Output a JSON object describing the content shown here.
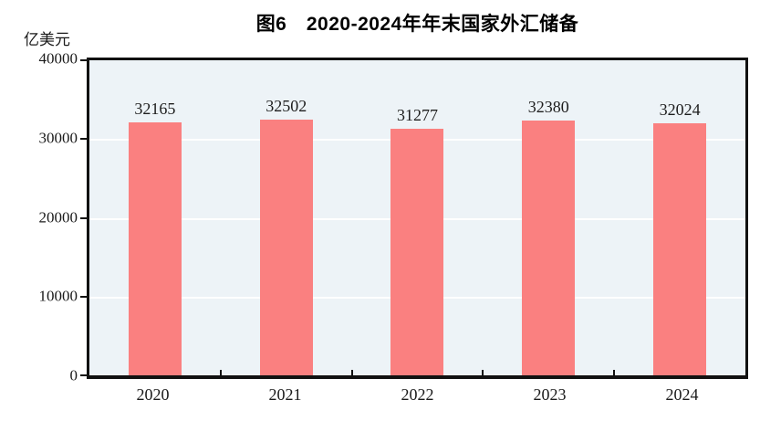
{
  "chart_data": {
    "type": "bar",
    "title": "图6　2020-2024年年末国家外汇储备",
    "ylabel": "亿美元",
    "xlabel": "",
    "categories": [
      "2020",
      "2021",
      "2022",
      "2023",
      "2024"
    ],
    "values": [
      32165,
      32502,
      31277,
      32380,
      32024
    ],
    "value_labels": [
      "32165",
      "32502",
      "31277",
      "32380",
      "32024"
    ],
    "ylim": [
      0,
      40000
    ],
    "yticks": [
      40000,
      30000,
      20000,
      10000,
      0
    ],
    "ytick_labels": [
      "40000",
      "30000",
      "20000",
      "10000",
      "0"
    ],
    "grid": "horizontal-white",
    "legend": "none",
    "colors": {
      "bar": "#fa8080",
      "plot_background": "#edf3f7",
      "gridline": "#ffffff",
      "axis": "#111111",
      "text": "#1a1a1a"
    }
  }
}
